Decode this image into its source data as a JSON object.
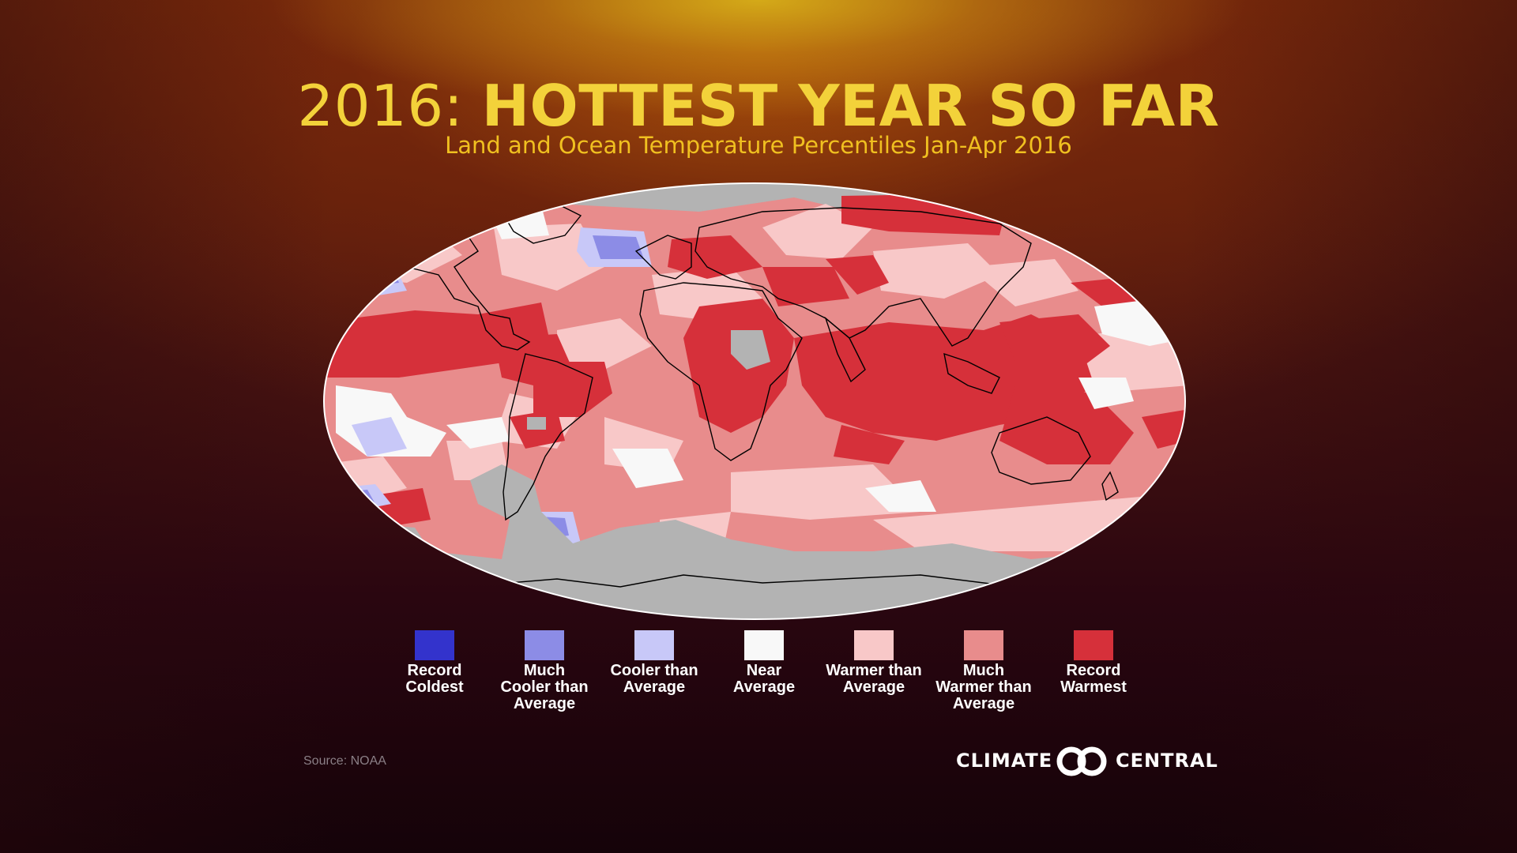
{
  "header": {
    "year": "2016:",
    "headline": "HOTTEST YEAR SO FAR",
    "subtitle": "Land and Ocean Temperature Percentiles Jan-Apr 2016"
  },
  "map": {
    "projection": "Robinson",
    "ocean_outline_color": "#ffffff",
    "no_data_color": "#b3b3b3",
    "coastline_color": "#000000"
  },
  "legend": [
    {
      "label": "Record Coldest",
      "lines": [
        "Record",
        "Coldest"
      ],
      "color": "#3333cc"
    },
    {
      "label": "Much Cooler than Average",
      "lines": [
        "Much",
        "Cooler than",
        "Average"
      ],
      "color": "#8c8ce6"
    },
    {
      "label": "Cooler than Average",
      "lines": [
        "Cooler than",
        "Average"
      ],
      "color": "#c8c8f8"
    },
    {
      "label": "Near Average",
      "lines": [
        "Near",
        "Average"
      ],
      "color": "#f8f8f8"
    },
    {
      "label": "Warmer than Average",
      "lines": [
        "Warmer than",
        "Average"
      ],
      "color": "#f8c8c8"
    },
    {
      "label": "Much Warmer than Average",
      "lines": [
        "Much",
        "Warmer than",
        "Average"
      ],
      "color": "#e88c8c"
    },
    {
      "label": "Record Warmest",
      "lines": [
        "Record",
        "Warmest"
      ],
      "color": "#d6303a"
    }
  ],
  "footer": {
    "source": "Source: NOAA",
    "logo_left": "CLIMATE",
    "logo_right": "CENTRAL"
  },
  "colors": {
    "title": "#f3d23a",
    "subtitle": "#f0c020"
  }
}
